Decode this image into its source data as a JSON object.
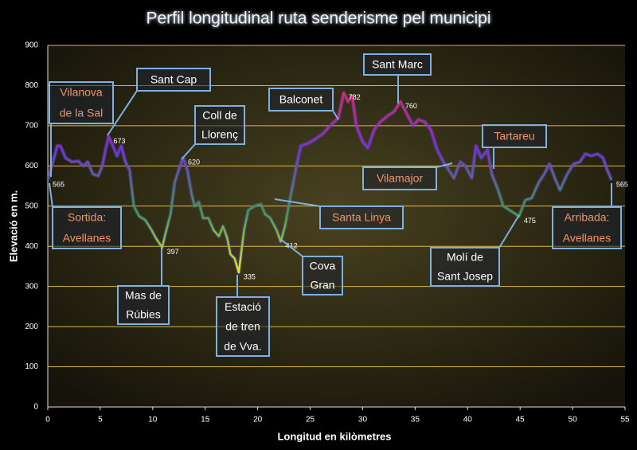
{
  "chart_data": {
    "type": "line",
    "title": "Perfil longitudinal ruta senderisme pel municipi",
    "x_label": "Longitud en kilòmetres",
    "y_label": "Elevació en  m.",
    "x": [
      0,
      0.6,
      0.9,
      1.2,
      1.7,
      2.3,
      2.9,
      3.4,
      3.8,
      4.3,
      4.8,
      5.2,
      5.5,
      5.8,
      6.2,
      6.6,
      7.0,
      7.4,
      7.8,
      8.2,
      8.7,
      9.3,
      9.9,
      10.3,
      10.9,
      11.2,
      11.7,
      12.1,
      12.6,
      12.9,
      13.3,
      13.7,
      14.0,
      14.4,
      14.8,
      15.3,
      15.8,
      16.3,
      16.7,
      17.1,
      17.4,
      17.8,
      18.2,
      18.7,
      19.1,
      19.7,
      20.3,
      20.7,
      21.2,
      21.8,
      22.2,
      22.6,
      23.1,
      23.7,
      24.1,
      24.7,
      25.4,
      26.2,
      26.9,
      27.7,
      28.2,
      28.6,
      29.0,
      29.4,
      30.0,
      30.5,
      31.1,
      31.7,
      32.4,
      33.0,
      33.6,
      34.2,
      34.8,
      35.3,
      35.9,
      36.5,
      37.1,
      37.7,
      38.2,
      38.7,
      39.3,
      39.8,
      40.4,
      40.8,
      41.3,
      41.9,
      42.3,
      42.9,
      43.4,
      44.0,
      44.6,
      44.9,
      45.5,
      46.1,
      46.8,
      47.3,
      47.8,
      48.3,
      48.8,
      49.5,
      50.1,
      50.7,
      51.2,
      51.8,
      52.4,
      52.9,
      53.3,
      53.7
    ],
    "series": [
      {
        "name": "Elevació",
        "gradient_colors": [
          "#ff2050",
          "#7a2ee0",
          "#3aa040",
          "#f2e830"
        ],
        "values": [
          565,
          620,
          650,
          650,
          620,
          610,
          612,
          600,
          610,
          580,
          575,
          600,
          640,
          673,
          650,
          625,
          650,
          610,
          590,
          500,
          475,
          465,
          440,
          420,
          397,
          430,
          480,
          560,
          600,
          620,
          590,
          530,
          500,
          510,
          470,
          470,
          440,
          425,
          450,
          420,
          380,
          370,
          335,
          440,
          490,
          500,
          505,
          480,
          470,
          440,
          412,
          450,
          520,
          600,
          650,
          655,
          665,
          680,
          700,
          720,
          782,
          760,
          775,
          700,
          660,
          645,
          690,
          710,
          725,
          735,
          760,
          730,
          700,
          715,
          710,
          690,
          640,
          610,
          590,
          570,
          610,
          600,
          570,
          650,
          620,
          640,
          580,
          540,
          500,
          490,
          480,
          475,
          515,
          520,
          560,
          580,
          605,
          570,
          540,
          580,
          605,
          610,
          630,
          625,
          630,
          620,
          590,
          565
        ]
      }
    ],
    "point_labels": [
      {
        "x": 0,
        "y": 565
      },
      {
        "x": 5.8,
        "y": 673
      },
      {
        "x": 12.9,
        "y": 620
      },
      {
        "x": 10.9,
        "y": 397
      },
      {
        "x": 18.2,
        "y": 335
      },
      {
        "x": 22.2,
        "y": 412
      },
      {
        "x": 28.2,
        "y": 782
      },
      {
        "x": 33.6,
        "y": 760
      },
      {
        "x": 44.9,
        "y": 475
      },
      {
        "x": 53.7,
        "y": 565
      }
    ],
    "annotations": [
      {
        "lines": [
          "Vilanova",
          "de la Sal"
        ],
        "color": "#f0956a"
      },
      {
        "lines": [
          "Sant Cap"
        ],
        "color": "#ffffff"
      },
      {
        "lines": [
          "Coll de",
          "Llorenç"
        ],
        "color": "#ffffff"
      },
      {
        "lines": [
          "Balconet"
        ],
        "color": "#ffffff"
      },
      {
        "lines": [
          "Sant Marc"
        ],
        "color": "#ffffff"
      },
      {
        "lines": [
          "Tartareu"
        ],
        "color": "#f0956a"
      },
      {
        "lines": [
          "Vilamajor"
        ],
        "color": "#f0956a"
      },
      {
        "lines": [
          "Santa Linya"
        ],
        "color": "#f0956a"
      },
      {
        "lines": [
          "Sortida:",
          "Avellanes"
        ],
        "color": "#f0956a"
      },
      {
        "lines": [
          "Arribada:",
          "Avellanes"
        ],
        "color": "#f0956a"
      },
      {
        "lines": [
          "Mas de",
          "Rúbies"
        ],
        "color": "#ffffff"
      },
      {
        "lines": [
          "Estació",
          "de tren",
          "de Vva."
        ],
        "color": "#ffffff"
      },
      {
        "lines": [
          "Cova",
          "Gran"
        ],
        "color": "#ffffff"
      },
      {
        "lines": [
          "Molí de",
          "Sant Josep"
        ],
        "color": "#ffffff"
      }
    ],
    "xlim": [
      0,
      55
    ],
    "xticks": [
      0,
      5,
      10,
      15,
      20,
      25,
      30,
      35,
      40,
      45,
      50,
      55
    ],
    "ylim": [
      0,
      900
    ],
    "yticks": [
      0,
      100,
      200,
      300,
      400,
      500,
      600,
      700,
      800,
      900
    ],
    "grid": true,
    "grid_color": "#d9b84a"
  }
}
